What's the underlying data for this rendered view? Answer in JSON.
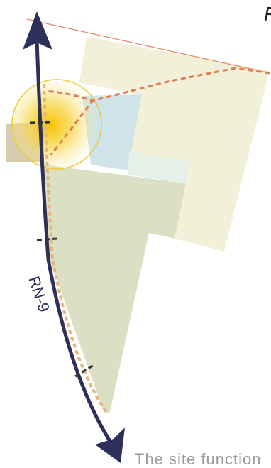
{
  "corner_text": "F",
  "road_label": "RN-9",
  "bottom_caption": "The site function",
  "colors": {
    "road": "#2d3058",
    "boundary_dash": "#e07e52",
    "thin_line": "#e0896a",
    "buffer_dash": "#e8b47d",
    "zone_cream": "#f3f0d9",
    "zone_light_blue": "#cfe3e8",
    "zone_pale_mint": "#e4f0e8",
    "zone_olive": "#dbdfc3",
    "zone_tan": "#d7ccb2",
    "node_ring": "#f0c832",
    "node_glow": "#f5c400"
  },
  "icons": {
    "road_direction": "double-arrow-icon",
    "node": "hotspot-circle-icon"
  }
}
